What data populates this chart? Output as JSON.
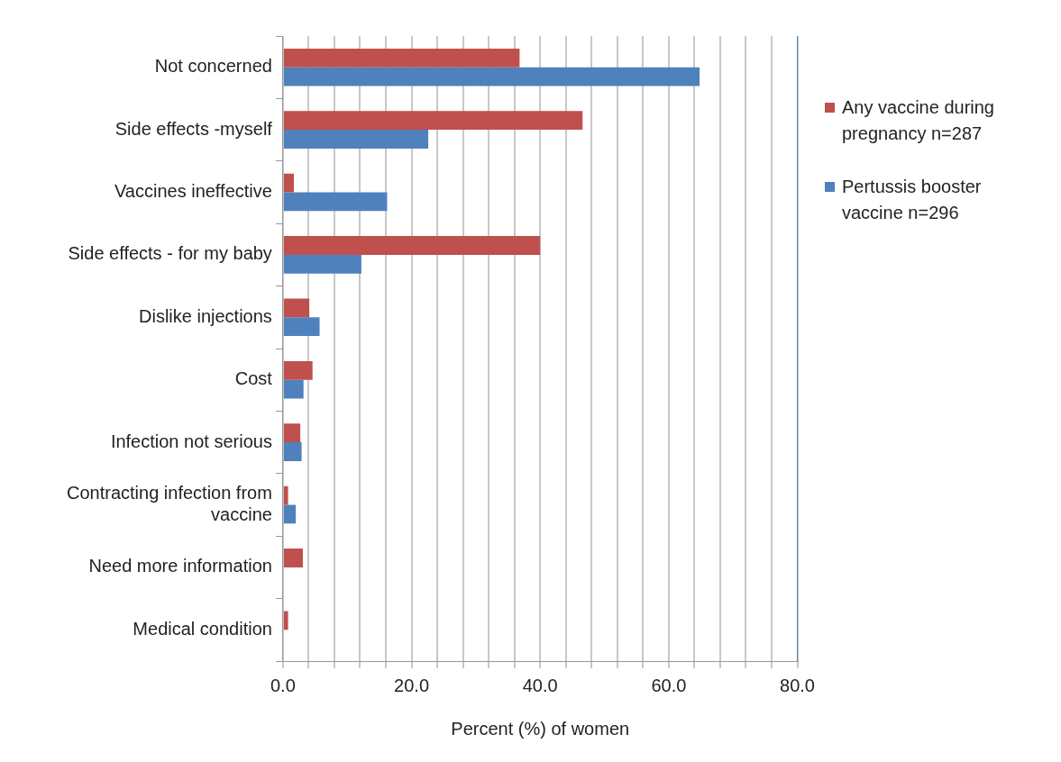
{
  "chart_data": {
    "type": "bar",
    "orientation": "horizontal",
    "xlabel": "Percent (%) of women",
    "categories": [
      "Not concerned",
      "Side effects -myself",
      "Vaccines ineffective",
      "Side effects - for my baby",
      "Dislike injections",
      "Cost",
      "Infection not serious",
      "Contracting infection from vaccine",
      "Need more information",
      "Medical condition"
    ],
    "series": [
      {
        "name": "Any vaccine during pregnancy n=287",
        "color": "#c0504d",
        "values": [
          36.8,
          46.6,
          1.7,
          40.0,
          4.1,
          4.6,
          2.7,
          0.8,
          3.1,
          0.8
        ]
      },
      {
        "name": "Pertussis booster vaccine n=296",
        "color": "#4f81bd",
        "values": [
          64.8,
          22.6,
          16.2,
          12.2,
          5.7,
          3.2,
          2.9,
          2.0,
          null,
          null
        ]
      }
    ],
    "xlim": [
      0,
      80
    ],
    "xticks": [
      {
        "value": 0,
        "label": "0.0"
      },
      {
        "value": 4,
        "label": null
      },
      {
        "value": 8,
        "label": null
      },
      {
        "value": 12,
        "label": null
      },
      {
        "value": 16,
        "label": null
      },
      {
        "value": 20,
        "label": "20.0"
      },
      {
        "value": 24,
        "label": null
      },
      {
        "value": 28,
        "label": null
      },
      {
        "value": 32,
        "label": null
      },
      {
        "value": 36,
        "label": null
      },
      {
        "value": 40,
        "label": "40.0"
      },
      {
        "value": 44,
        "label": null
      },
      {
        "value": 48,
        "label": null
      },
      {
        "value": 52,
        "label": null
      },
      {
        "value": 56,
        "label": null
      },
      {
        "value": 60,
        "label": "60.0"
      },
      {
        "value": 64,
        "label": null
      },
      {
        "value": 68,
        "label": null
      },
      {
        "value": 72,
        "label": null
      },
      {
        "value": 76,
        "label": null
      },
      {
        "value": 80,
        "label": "80.0"
      }
    ],
    "grid": "x",
    "legend": "right"
  }
}
